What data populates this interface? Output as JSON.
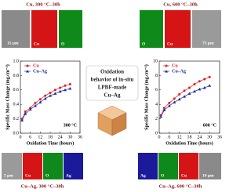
{
  "chart_data": [
    {
      "type": "line",
      "ylabel": "Specific Mass Change (mg.cm⁻²)",
      "xlabel": "Oxidation Time (hours)",
      "annotation": "300 °C",
      "legend": "upper left",
      "x": [
        1,
        3,
        6,
        9,
        12,
        15,
        18,
        21,
        24,
        27,
        30
      ],
      "xlim": [
        0,
        36
      ],
      "xticks": [
        0,
        6,
        12,
        18,
        24,
        30,
        36
      ],
      "ylim": [
        0,
        1
      ],
      "yticks": [
        {
          "value": 0,
          "label": "0.0"
        },
        0.2,
        0.4,
        0.6,
        0.8,
        {
          "value": 1,
          "label": "1.0"
        }
      ],
      "series": [
        {
          "name": "Cu",
          "color": "#e02020",
          "marker": "circle",
          "values": [
            0.2,
            0.3,
            0.35,
            0.42,
            0.47,
            0.52,
            0.56,
            0.6,
            0.63,
            0.66,
            0.68
          ]
        },
        {
          "name": "Cu–Ag",
          "color": "#1f2f9f",
          "marker": "triangle",
          "values": [
            0.18,
            0.27,
            0.33,
            0.38,
            0.43,
            0.48,
            0.52,
            0.55,
            0.58,
            0.6,
            0.62
          ]
        }
      ]
    },
    {
      "type": "line",
      "ylabel": "Specific Mass Change (mg.cm⁻²)",
      "xlabel": "Oxidation Time (hours)",
      "annotation": "600 °C",
      "legend": "upper left",
      "x": [
        1,
        3,
        6,
        9,
        12,
        15,
        18,
        21,
        24,
        27,
        30
      ],
      "xlim": [
        0,
        36
      ],
      "xticks": [
        0,
        6,
        12,
        18,
        24,
        30,
        36
      ],
      "ylim": [
        0,
        10
      ],
      "yticks": [
        0,
        2,
        4,
        6,
        8,
        10
      ],
      "series": [
        {
          "name": "Cu",
          "color": "#e02020",
          "marker": "circle",
          "values": [
            2.5,
            3.5,
            4.2,
            4.8,
            5.4,
            5.9,
            6.3,
            6.8,
            7.2,
            7.5,
            7.8
          ]
        },
        {
          "name": "Cu–Ag",
          "color": "#1f2f9f",
          "marker": "triangle",
          "values": [
            2.3,
            3.2,
            3.8,
            4.3,
            4.7,
            5.1,
            5.5,
            5.8,
            6.1,
            6.3,
            6.6
          ]
        }
      ]
    }
  ],
  "center_text": [
    "Oxidation",
    "behavior of in-situ",
    "LPBF-made",
    "Cu–Ag"
  ],
  "panels": [
    {
      "caption": "Cu, 300 °C–30h",
      "labels": [
        "15 μm",
        "Cu",
        "O"
      ]
    },
    {
      "caption": "Cu, 600 °C–30h",
      "labels": [
        "O",
        "Cu",
        "75 μm"
      ]
    },
    {
      "caption": "Cu–Ag, 300 °C–30h",
      "labels": [
        "5 μm",
        "Cu",
        "O",
        "Ag"
      ]
    },
    {
      "caption": "Cu–Ag, 600 °C–30h",
      "labels": [
        "Ag",
        "O",
        "Cu",
        "10 μm"
      ]
    }
  ]
}
